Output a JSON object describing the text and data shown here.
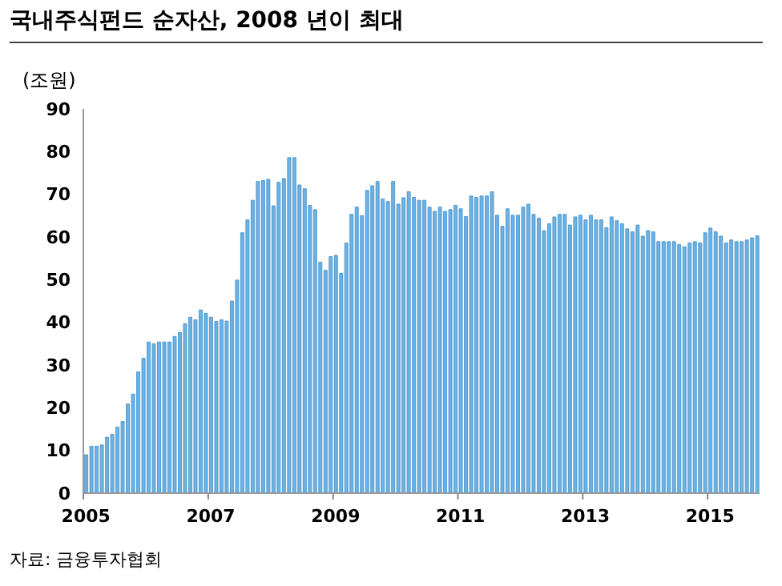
{
  "chart_data": {
    "type": "bar",
    "title": "국내주식펀드 순자산, 2008 년이 최대",
    "ylabel": "(조원)",
    "annotations": [
      "자료: 금융투자협회"
    ],
    "categories": [
      "2005",
      null,
      null,
      null,
      null,
      null,
      null,
      null,
      null,
      null,
      null,
      null,
      null,
      null,
      null,
      null,
      null,
      null,
      null,
      null,
      null,
      null,
      null,
      null,
      "2007",
      null,
      null,
      null,
      null,
      null,
      null,
      null,
      null,
      null,
      null,
      null,
      null,
      null,
      null,
      null,
      null,
      null,
      null,
      null,
      null,
      null,
      null,
      null,
      "2009",
      null,
      null,
      null,
      null,
      null,
      null,
      null,
      null,
      null,
      null,
      null,
      null,
      null,
      null,
      null,
      null,
      null,
      null,
      null,
      null,
      null,
      null,
      null,
      "2011",
      null,
      null,
      null,
      null,
      null,
      null,
      null,
      null,
      null,
      null,
      null,
      null,
      null,
      null,
      null,
      null,
      null,
      null,
      null,
      null,
      null,
      null,
      null,
      "2013",
      null,
      null,
      null,
      null,
      null,
      null,
      null,
      null,
      null,
      null,
      null,
      null,
      null,
      null,
      null,
      null,
      null,
      null,
      null,
      null,
      null,
      null,
      null,
      "2015",
      null,
      null,
      null,
      null,
      null,
      null,
      null,
      null,
      null
    ],
    "values": [
      9,
      11,
      11,
      11.3,
      13.1,
      13.8,
      15.5,
      16.8,
      20.9,
      23.2,
      28.4,
      31.6,
      35.4,
      35,
      35.4,
      35.4,
      35.4,
      36.7,
      37.6,
      39.7,
      41.2,
      40.6,
      42.9,
      42.1,
      41.2,
      40.2,
      40.6,
      40.3,
      45,
      49.9,
      61,
      64,
      68.6,
      73,
      73.2,
      73.5,
      67.3,
      72.8,
      73.7,
      78.6,
      78.6,
      72.2,
      71.3,
      67.4,
      66.4,
      54.1,
      52.2,
      55.4,
      55.7,
      51.5,
      58.6,
      65.3,
      67,
      65,
      70.9,
      72,
      73,
      68.9,
      68.3,
      73,
      67.7,
      69.2,
      70.6,
      69.3,
      68.6,
      68.6,
      67,
      66,
      67,
      66,
      66.4,
      67.4,
      66.6,
      64.8,
      69.6,
      69.3,
      69.6,
      69.6,
      70.6,
      65.1,
      62.5,
      66.6,
      65.1,
      65.1,
      67,
      67.7,
      65.3,
      64.4,
      61.5,
      63.1,
      64.7,
      65.3,
      65.3,
      62.8,
      64.7,
      65.1,
      64,
      65.1,
      64,
      64,
      62.2,
      64.7,
      63.8,
      63.1,
      61.9,
      61.2,
      62.8,
      60.2,
      61.5,
      61.2,
      58.9,
      58.9,
      58.9,
      58.9,
      58.2,
      57.7,
      58.6,
      58.9,
      58.6,
      61,
      62.1,
      61.2,
      60.2,
      58.6,
      59.3,
      58.9,
      58.9,
      59.3,
      59.8,
      60.3
    ],
    "color": "#6cb2e4",
    "ylim": [
      0,
      90
    ],
    "yticks": [
      0,
      10,
      20,
      30,
      40,
      50,
      60,
      70,
      80,
      90
    ]
  }
}
